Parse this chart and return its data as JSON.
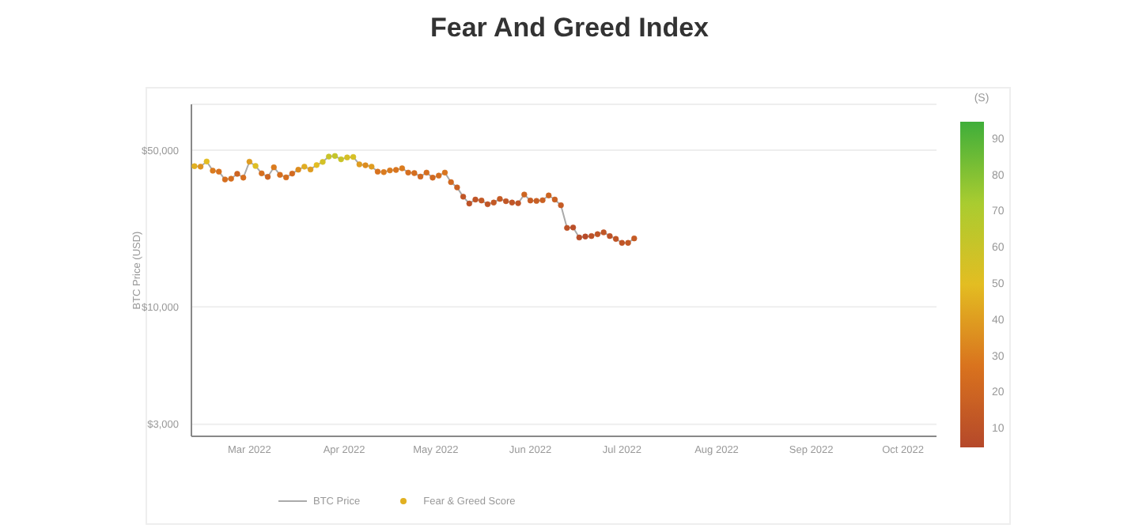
{
  "chart_data": {
    "type": "scatter",
    "title": "Fear And Greed Index",
    "ylabel": "BTC Price (USD)",
    "clabel": "(S)",
    "log": "y",
    "grid": "y",
    "legend": "bottom",
    "x": [
      "2022-02-11",
      "2022-02-13",
      "2022-02-15",
      "2022-02-17",
      "2022-02-19",
      "2022-02-21",
      "2022-02-23",
      "2022-02-25",
      "2022-02-27",
      "2022-03-01",
      "2022-03-03",
      "2022-03-05",
      "2022-03-07",
      "2022-03-09",
      "2022-03-11",
      "2022-03-13",
      "2022-03-15",
      "2022-03-17",
      "2022-03-19",
      "2022-03-21",
      "2022-03-23",
      "2022-03-25",
      "2022-03-27",
      "2022-03-29",
      "2022-03-31",
      "2022-04-02",
      "2022-04-04",
      "2022-04-06",
      "2022-04-08",
      "2022-04-10",
      "2022-04-12",
      "2022-04-14",
      "2022-04-16",
      "2022-04-18",
      "2022-04-20",
      "2022-04-22",
      "2022-04-24",
      "2022-04-26",
      "2022-04-28",
      "2022-04-30",
      "2022-05-02",
      "2022-05-04",
      "2022-05-06",
      "2022-05-08",
      "2022-05-10",
      "2022-05-12",
      "2022-05-14",
      "2022-05-16",
      "2022-05-18",
      "2022-05-20",
      "2022-05-22",
      "2022-05-24",
      "2022-05-26",
      "2022-05-28",
      "2022-05-30",
      "2022-06-01",
      "2022-06-03",
      "2022-06-05",
      "2022-06-07",
      "2022-06-09",
      "2022-06-11",
      "2022-06-13",
      "2022-06-15",
      "2022-06-17",
      "2022-06-19",
      "2022-06-21",
      "2022-06-23",
      "2022-06-25",
      "2022-06-27",
      "2022-06-29",
      "2022-07-01",
      "2022-07-03",
      "2022-07-05"
    ],
    "series": [
      {
        "name": "BTC Price",
        "type": "line",
        "color": "#aaaaaa",
        "values": [
          42400,
          42200,
          44500,
          40500,
          40100,
          37000,
          37300,
          39200,
          37700,
          44400,
          42500,
          39400,
          38000,
          41900,
          38800,
          37800,
          39300,
          40900,
          42200,
          41000,
          42900,
          44300,
          46800,
          47100,
          45500,
          46400,
          46600,
          43200,
          42800,
          42200,
          40100,
          39900,
          40600,
          40800,
          41500,
          39700,
          39500,
          38100,
          39700,
          37700,
          38500,
          39700,
          36000,
          34100,
          31000,
          28900,
          30100,
          29800,
          28700,
          29200,
          30300,
          29600,
          29200,
          29000,
          31700,
          29800,
          29700,
          29900,
          31400,
          30100,
          28400,
          22500,
          22600,
          20400,
          20600,
          20700,
          21100,
          21500,
          20700,
          20100,
          19300,
          19300,
          20200
        ]
      },
      {
        "name": "Fear & Greed Score",
        "marker": "circle",
        "colors": [
          "#e1b021",
          "#dd9220",
          "#e3bd22",
          "#da7b1e",
          "#d8721e",
          "#d56e1f",
          "#d56e1f",
          "#cd6522",
          "#d56e1f",
          "#df9c20",
          "#debe23",
          "#d56e1f",
          "#cd6522",
          "#da7b1e",
          "#d56e1f",
          "#d56e1f",
          "#d26a20",
          "#dc8c1f",
          "#e1ad21",
          "#df9c20",
          "#e3bd22",
          "#d4c126",
          "#c9c428",
          "#c4c529",
          "#c9c428",
          "#d6c025",
          "#d6c025",
          "#df9c20",
          "#dc8c1f",
          "#df9c20",
          "#d8721e",
          "#da7b1e",
          "#da7b1e",
          "#d9751e",
          "#da7b1e",
          "#d56e1f",
          "#d56e1f",
          "#d06921",
          "#d56e1f",
          "#d06921",
          "#d56e1f",
          "#d9751e",
          "#d06921",
          "#ca6123",
          "#c05526",
          "#bd5227",
          "#c05526",
          "#c35925",
          "#c05526",
          "#c35925",
          "#c55b25",
          "#c25726",
          "#c05526",
          "#c05526",
          "#cd6522",
          "#c75d24",
          "#c85f24",
          "#ca6123",
          "#cd6522",
          "#ca6123",
          "#c55b25",
          "#bd5227",
          "#ba4e28",
          "#ba4e28",
          "#b74a29",
          "#bd5227",
          "#c05526",
          "#c05526",
          "#bd5227",
          "#c05526",
          "#c05526",
          "#c35925",
          "#c55b25"
        ],
        "values": [
          42400,
          42200,
          44500,
          40500,
          40100,
          37000,
          37300,
          39200,
          37700,
          44400,
          42500,
          39400,
          38000,
          41900,
          38800,
          37800,
          39300,
          40900,
          42200,
          41000,
          42900,
          44300,
          46800,
          47100,
          45500,
          46400,
          46600,
          43200,
          42800,
          42200,
          40100,
          39900,
          40600,
          40800,
          41500,
          39700,
          39500,
          38100,
          39700,
          37700,
          38500,
          39700,
          36000,
          34100,
          31000,
          28900,
          30100,
          29800,
          28700,
          29200,
          30300,
          29600,
          29200,
          29000,
          31700,
          29800,
          29700,
          29900,
          31400,
          30100,
          28400,
          22500,
          22600,
          20400,
          20600,
          20700,
          21100,
          21500,
          20700,
          20100,
          19300,
          19300,
          20200
        ],
        "cvalues": [
          46,
          37,
          50,
          30,
          27,
          25,
          25,
          20,
          25,
          40,
          52,
          25,
          20,
          30,
          25,
          25,
          23,
          35,
          45,
          40,
          50,
          56,
          60,
          62,
          60,
          55,
          55,
          40,
          35,
          40,
          27,
          30,
          30,
          28,
          30,
          25,
          25,
          22,
          25,
          22,
          25,
          28,
          22,
          18,
          12,
          10,
          12,
          14,
          12,
          14,
          15,
          13,
          12,
          12,
          20,
          16,
          17,
          18,
          20,
          18,
          15,
          10,
          8,
          8,
          6,
          10,
          12,
          12,
          10,
          12,
          12,
          14,
          15
        ]
      }
    ],
    "xlim": [
      "2022-02-10",
      "2022-10-12"
    ],
    "xticks": [
      {
        "value": "2022-03-01",
        "label": "Mar 2022"
      },
      {
        "value": "2022-04-01",
        "label": "Apr 2022"
      },
      {
        "value": "2022-05-01",
        "label": "May 2022"
      },
      {
        "value": "2022-06-01",
        "label": "Jun 2022"
      },
      {
        "value": "2022-07-01",
        "label": "Jul 2022"
      },
      {
        "value": "2022-08-01",
        "label": "Aug 2022"
      },
      {
        "value": "2022-09-01",
        "label": "Sep 2022"
      },
      {
        "value": "2022-10-01",
        "label": "Oct 2022"
      }
    ],
    "ylim": [
      2650,
      80000
    ],
    "yticks": [
      {
        "value": 3000,
        "label": "$3,000"
      },
      {
        "value": 10000,
        "label": "$10,000"
      },
      {
        "value": 50000,
        "label": "$50,000"
      }
    ],
    "clim": [
      5,
      95
    ],
    "cticks": [
      10,
      20,
      30,
      40,
      50,
      60,
      70,
      80,
      90
    ]
  }
}
